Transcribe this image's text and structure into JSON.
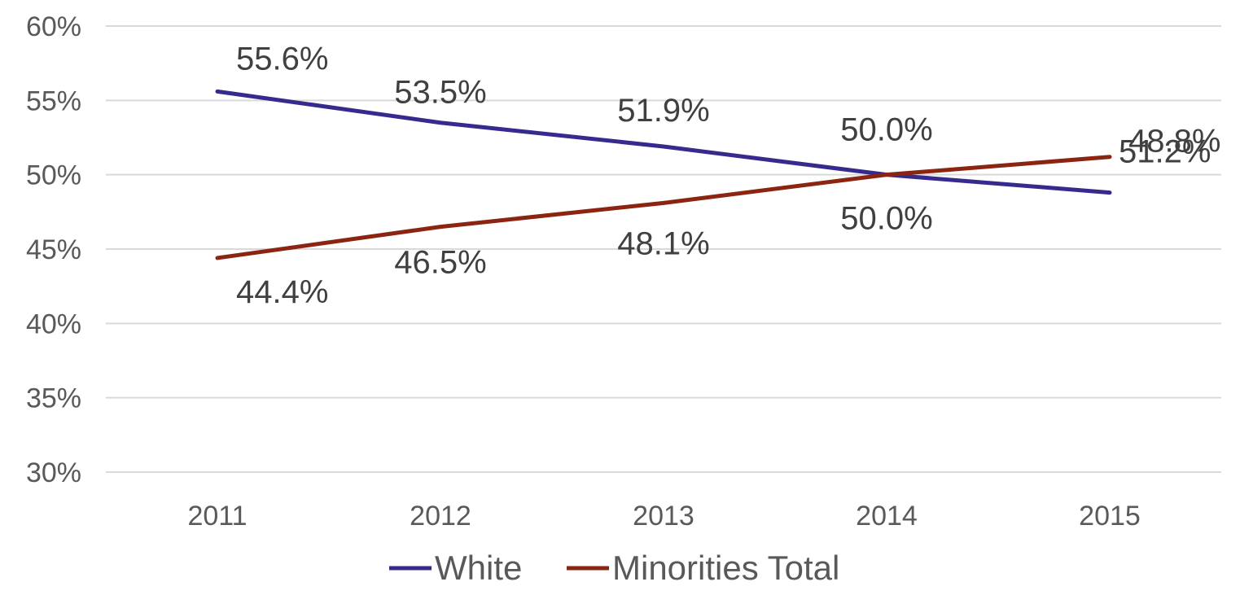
{
  "chart_data": {
    "type": "line",
    "categories": [
      "2011",
      "2012",
      "2013",
      "2014",
      "2015"
    ],
    "ylim": [
      30,
      60
    ],
    "yticks": [
      30,
      35,
      40,
      45,
      50,
      55,
      60
    ],
    "ytick_labels": [
      "30%",
      "35%",
      "40%",
      "45%",
      "50%",
      "55%",
      "60%"
    ],
    "grid": true,
    "legend": "bottom-center",
    "series": [
      {
        "name": "White",
        "color": "#362A8E",
        "values": [
          55.6,
          53.5,
          51.9,
          50.0,
          48.8
        ],
        "labels": [
          "55.6%",
          "53.5%",
          "51.9%",
          "50.0%",
          "48.8%"
        ]
      },
      {
        "name": "Minorities Total",
        "color": "#8B2512",
        "values": [
          44.4,
          46.5,
          48.1,
          50.0,
          51.2
        ],
        "labels": [
          "44.4%",
          "46.5%",
          "48.1%",
          "50.0%",
          "51.2%"
        ]
      }
    ]
  }
}
